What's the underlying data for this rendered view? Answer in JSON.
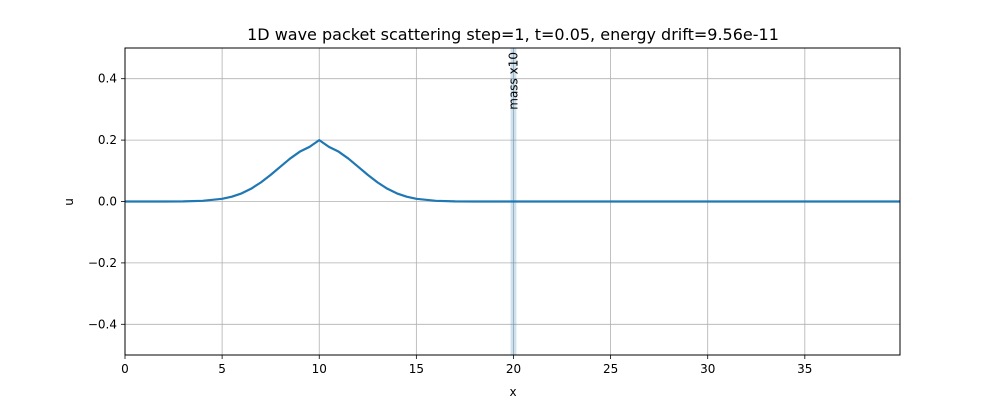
{
  "chart_data": {
    "type": "line",
    "title": "1D wave packet scattering  step=1,  t=0.05,  energy drift=9.56e-11",
    "xlabel": "x",
    "ylabel": "u",
    "xlim": [
      0,
      39.9
    ],
    "ylim": [
      -0.5,
      0.5
    ],
    "x_ticks": [
      0,
      5,
      10,
      15,
      20,
      25,
      30,
      35
    ],
    "x_tick_labels": [
      "0",
      "5",
      "10",
      "15",
      "20",
      "25",
      "30",
      "35"
    ],
    "y_ticks": [
      -0.4,
      -0.2,
      0.0,
      0.2,
      0.4
    ],
    "y_tick_labels": [
      "−0.4",
      "−0.2",
      "0.0",
      "0.2",
      "0.4"
    ],
    "grid": true,
    "series": [
      {
        "color": "#1f77b4",
        "x": [
          0,
          2,
          3,
          4,
          5,
          5.5,
          6,
          6.5,
          7,
          7.5,
          8,
          8.5,
          9,
          9.5,
          10,
          10.5,
          11,
          11.5,
          12,
          12.5,
          13,
          13.5,
          14,
          14.5,
          15,
          16,
          17,
          18,
          20,
          25,
          30,
          35,
          39.9
        ],
        "y": [
          0,
          0.0,
          0.0004,
          0.0022,
          0.0088,
          0.0156,
          0.0264,
          0.0419,
          0.0623,
          0.0867,
          0.1135,
          0.1398,
          0.1623,
          0.1779,
          0.2,
          0.1779,
          0.1623,
          0.1398,
          0.1135,
          0.0867,
          0.0623,
          0.0419,
          0.0264,
          0.0156,
          0.0088,
          0.0022,
          0.0004,
          0.0,
          0,
          0,
          0,
          0,
          0
        ]
      }
    ],
    "mass_region": {
      "x": 20.0,
      "halfwidth": 0.15,
      "color": "#1f77b4"
    },
    "annotation": {
      "text": "mass x10",
      "x": 20.0,
      "y": 0.5
    }
  }
}
